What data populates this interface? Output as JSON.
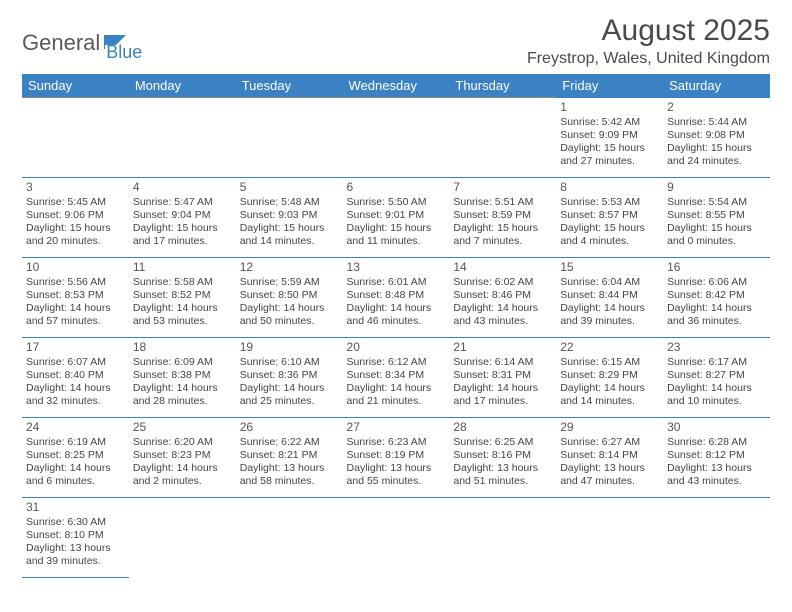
{
  "logo": {
    "text1": "General",
    "text2": "Blue"
  },
  "title": "August 2025",
  "location": "Freystrop, Wales, United Kingdom",
  "colors": {
    "header_bg": "#3b82c4",
    "header_fg": "#ffffff",
    "text": "#444444",
    "row_border_top": "#888888",
    "row_border_bottom": "#3b82c4",
    "logo_gray": "#5a5a5a",
    "logo_blue": "#3b82c4"
  },
  "dayHeaders": [
    "Sunday",
    "Monday",
    "Tuesday",
    "Wednesday",
    "Thursday",
    "Friday",
    "Saturday"
  ],
  "weeks": [
    [
      null,
      null,
      null,
      null,
      null,
      {
        "n": "1",
        "sr": "5:42 AM",
        "ss": "9:09 PM",
        "dl": "15 hours and 27 minutes."
      },
      {
        "n": "2",
        "sr": "5:44 AM",
        "ss": "9:08 PM",
        "dl": "15 hours and 24 minutes."
      }
    ],
    [
      {
        "n": "3",
        "sr": "5:45 AM",
        "ss": "9:06 PM",
        "dl": "15 hours and 20 minutes."
      },
      {
        "n": "4",
        "sr": "5:47 AM",
        "ss": "9:04 PM",
        "dl": "15 hours and 17 minutes."
      },
      {
        "n": "5",
        "sr": "5:48 AM",
        "ss": "9:03 PM",
        "dl": "15 hours and 14 minutes."
      },
      {
        "n": "6",
        "sr": "5:50 AM",
        "ss": "9:01 PM",
        "dl": "15 hours and 11 minutes."
      },
      {
        "n": "7",
        "sr": "5:51 AM",
        "ss": "8:59 PM",
        "dl": "15 hours and 7 minutes."
      },
      {
        "n": "8",
        "sr": "5:53 AM",
        "ss": "8:57 PM",
        "dl": "15 hours and 4 minutes."
      },
      {
        "n": "9",
        "sr": "5:54 AM",
        "ss": "8:55 PM",
        "dl": "15 hours and 0 minutes."
      }
    ],
    [
      {
        "n": "10",
        "sr": "5:56 AM",
        "ss": "8:53 PM",
        "dl": "14 hours and 57 minutes."
      },
      {
        "n": "11",
        "sr": "5:58 AM",
        "ss": "8:52 PM",
        "dl": "14 hours and 53 minutes."
      },
      {
        "n": "12",
        "sr": "5:59 AM",
        "ss": "8:50 PM",
        "dl": "14 hours and 50 minutes."
      },
      {
        "n": "13",
        "sr": "6:01 AM",
        "ss": "8:48 PM",
        "dl": "14 hours and 46 minutes."
      },
      {
        "n": "14",
        "sr": "6:02 AM",
        "ss": "8:46 PM",
        "dl": "14 hours and 43 minutes."
      },
      {
        "n": "15",
        "sr": "6:04 AM",
        "ss": "8:44 PM",
        "dl": "14 hours and 39 minutes."
      },
      {
        "n": "16",
        "sr": "6:06 AM",
        "ss": "8:42 PM",
        "dl": "14 hours and 36 minutes."
      }
    ],
    [
      {
        "n": "17",
        "sr": "6:07 AM",
        "ss": "8:40 PM",
        "dl": "14 hours and 32 minutes."
      },
      {
        "n": "18",
        "sr": "6:09 AM",
        "ss": "8:38 PM",
        "dl": "14 hours and 28 minutes."
      },
      {
        "n": "19",
        "sr": "6:10 AM",
        "ss": "8:36 PM",
        "dl": "14 hours and 25 minutes."
      },
      {
        "n": "20",
        "sr": "6:12 AM",
        "ss": "8:34 PM",
        "dl": "14 hours and 21 minutes."
      },
      {
        "n": "21",
        "sr": "6:14 AM",
        "ss": "8:31 PM",
        "dl": "14 hours and 17 minutes."
      },
      {
        "n": "22",
        "sr": "6:15 AM",
        "ss": "8:29 PM",
        "dl": "14 hours and 14 minutes."
      },
      {
        "n": "23",
        "sr": "6:17 AM",
        "ss": "8:27 PM",
        "dl": "14 hours and 10 minutes."
      }
    ],
    [
      {
        "n": "24",
        "sr": "6:19 AM",
        "ss": "8:25 PM",
        "dl": "14 hours and 6 minutes."
      },
      {
        "n": "25",
        "sr": "6:20 AM",
        "ss": "8:23 PM",
        "dl": "14 hours and 2 minutes."
      },
      {
        "n": "26",
        "sr": "6:22 AM",
        "ss": "8:21 PM",
        "dl": "13 hours and 58 minutes."
      },
      {
        "n": "27",
        "sr": "6:23 AM",
        "ss": "8:19 PM",
        "dl": "13 hours and 55 minutes."
      },
      {
        "n": "28",
        "sr": "6:25 AM",
        "ss": "8:16 PM",
        "dl": "13 hours and 51 minutes."
      },
      {
        "n": "29",
        "sr": "6:27 AM",
        "ss": "8:14 PM",
        "dl": "13 hours and 47 minutes."
      },
      {
        "n": "30",
        "sr": "6:28 AM",
        "ss": "8:12 PM",
        "dl": "13 hours and 43 minutes."
      }
    ],
    [
      {
        "n": "31",
        "sr": "6:30 AM",
        "ss": "8:10 PM",
        "dl": "13 hours and 39 minutes."
      },
      null,
      null,
      null,
      null,
      null,
      null
    ]
  ],
  "labels": {
    "sunrise": "Sunrise:",
    "sunset": "Sunset:",
    "daylight": "Daylight:"
  }
}
